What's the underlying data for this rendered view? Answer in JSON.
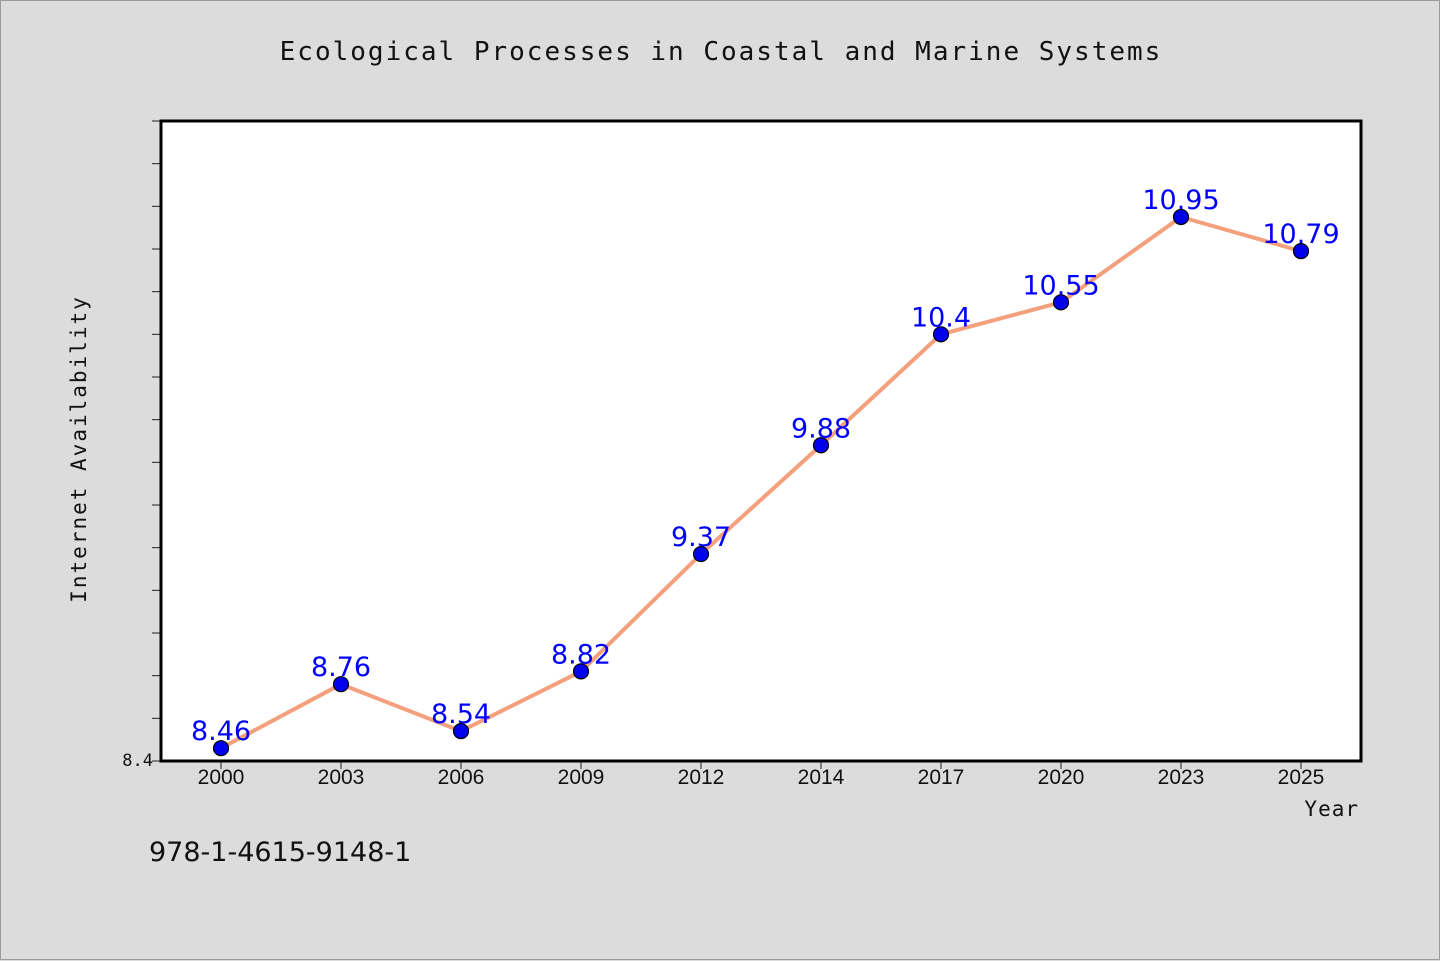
{
  "chart_data": {
    "type": "line",
    "title": "Ecological Processes in Coastal and Marine Systems",
    "xlabel": "Year",
    "ylabel": "Internet Availability",
    "categories": [
      "2000",
      "2003",
      "2006",
      "2009",
      "2012",
      "2014",
      "2017",
      "2020",
      "2023",
      "2025"
    ],
    "values": [
      8.46,
      8.76,
      8.54,
      8.82,
      9.37,
      9.88,
      10.4,
      10.55,
      10.95,
      10.79
    ],
    "data_labels": [
      "8.46",
      "8.76",
      "8.54",
      "8.82",
      "9.37",
      "9.88",
      "10.4",
      "10.55",
      "10.95",
      "10.79"
    ],
    "ylim": [
      8.4,
      11.4
    ],
    "ytick_labels": [
      "8.4"
    ],
    "grid": false,
    "legend": "none",
    "line_color": "#f4a07c",
    "marker_color": "#0000ee",
    "label_color": "#0000ff"
  },
  "footnote": "978-1-4615-9148-1"
}
